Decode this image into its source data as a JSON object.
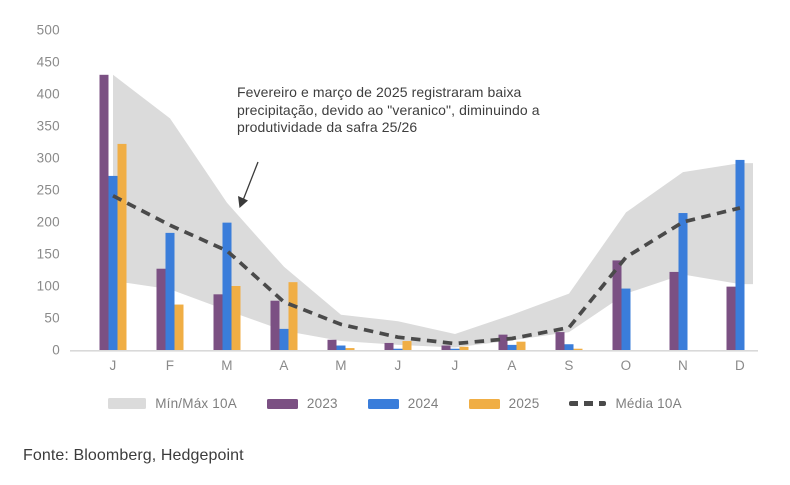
{
  "chart_data": {
    "type": "bar",
    "title": "",
    "xlabel": "",
    "ylabel": "",
    "grid": false,
    "legend_position": "bottom",
    "categories": [
      "J",
      "F",
      "M",
      "A",
      "M",
      "J",
      "J",
      "A",
      "S",
      "O",
      "N",
      "D"
    ],
    "ylim": [
      0,
      500
    ],
    "ytick_step": 50,
    "band": {
      "name": "Mín/Máx 10A",
      "color": "#dbdbdb",
      "min": [
        108,
        95,
        62,
        30,
        14,
        8,
        4,
        15,
        28,
        88,
        118,
        103
      ],
      "max": [
        430,
        362,
        230,
        130,
        55,
        45,
        25,
        55,
        88,
        215,
        278,
        292
      ]
    },
    "series": [
      {
        "name": "2023",
        "type": "bar",
        "color": "#7b5083",
        "values": [
          430,
          127,
          87,
          77,
          16,
          11,
          7,
          24,
          28,
          140,
          122,
          99
        ]
      },
      {
        "name": "2024",
        "type": "bar",
        "color": "#3a7dda",
        "values": [
          272,
          183,
          199,
          33,
          7,
          2,
          2,
          8,
          9,
          96,
          214,
          297
        ]
      },
      {
        "name": "2025",
        "type": "bar",
        "color": "#f0ae45",
        "values": [
          322,
          71,
          100,
          106,
          3,
          14,
          5,
          13,
          2,
          null,
          null,
          null
        ]
      },
      {
        "name": "Média 10A",
        "type": "line",
        "style": "dashed",
        "color": "#4a4a4a",
        "values": [
          241,
          195,
          155,
          75,
          40,
          20,
          10,
          18,
          35,
          145,
          200,
          222
        ]
      }
    ],
    "annotation": {
      "lines": [
        "Fevereiro e março de 2025 registraram baixa",
        "precipitação, devido ao \"veranico\", diminuindo a",
        "produtividade da safra 25/26"
      ]
    }
  },
  "footer": {
    "text": "Fonte: Bloomberg, Hedgepoint"
  }
}
